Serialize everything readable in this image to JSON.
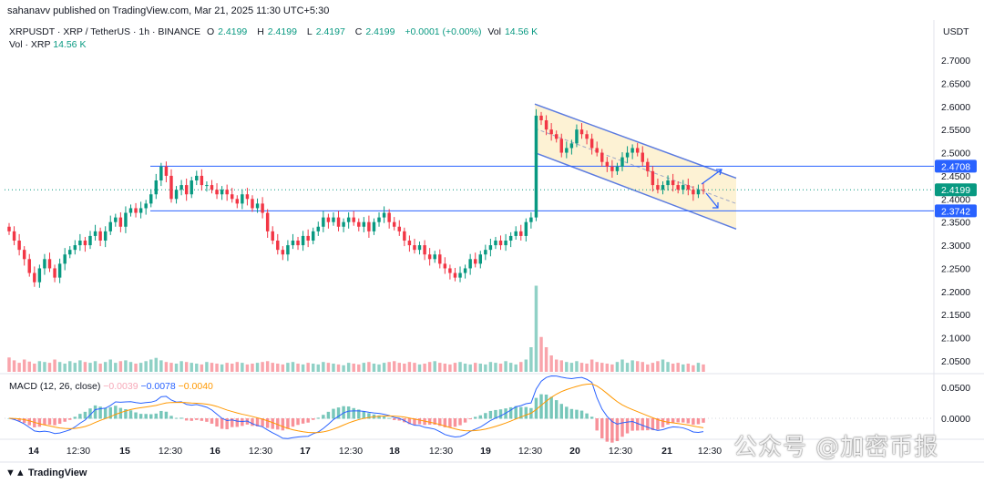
{
  "header": {
    "published": "sahanavv published on TradingView.com, Mar 21, 2025 11:30 UTC+5:30",
    "currency": "USDT"
  },
  "legend": {
    "symbol": "XRPUSDT · XRP / TetherUS · 1h · BINANCE",
    "o_label": "O",
    "o": "2.4199",
    "h_label": "H",
    "h": "2.4199",
    "l_label": "L",
    "l": "2.4197",
    "c_label": "C",
    "c": "2.4199",
    "change": "+0.0001 (+0.00%)",
    "vol_label": "Vol",
    "vol": "14.56 K"
  },
  "vol_legend": {
    "label": "Vol · XRP",
    "value": "14.56 K"
  },
  "macd_legend": {
    "label": "MACD (12, 26, close)",
    "hist": "−0.0039",
    "macd": "−0.0078",
    "signal": "−0.0040"
  },
  "footer": {
    "brand": "TradingView"
  },
  "watermark": "公众号 @加密币报",
  "colors": {
    "up": "#089981",
    "down": "#f23645",
    "level": "#2962ff",
    "channel": "#5b7be0",
    "channel_fill": "#fdf0cc",
    "macd": "#2962ff",
    "signal": "#ff9800"
  },
  "chart_data": {
    "type": "candlestick",
    "price_axis": {
      "ticks": [
        "2.7000",
        "2.6500",
        "2.6000",
        "2.5500",
        "2.5000",
        "2.4500",
        "2.4000",
        "2.3500",
        "2.3000",
        "2.2500",
        "2.2000",
        "2.1500",
        "2.1000",
        "2.0500"
      ],
      "ylim": [
        2.03,
        2.72
      ]
    },
    "time_axis": {
      "ticks": [
        "14",
        "12:30",
        "15",
        "12:30",
        "16",
        "12:30",
        "17",
        "12:30",
        "18",
        "12:30",
        "19",
        "12:30",
        "20",
        "12:30",
        "21",
        "12:30"
      ]
    },
    "levels": [
      {
        "price": 2.4708,
        "label": "2.4708"
      },
      {
        "price": 2.3742,
        "label": "2.3742"
      }
    ],
    "last_price": {
      "price": 2.4199,
      "label": "2.4199"
    },
    "channel": {
      "upper": [
        [
          2.605,
          0.56
        ],
        [
          2.445,
          0.82
        ]
      ],
      "lower": [
        [
          2.5,
          0.56
        ],
        [
          2.335,
          0.82
        ]
      ]
    },
    "closes": [
      2.33,
      2.31,
      2.29,
      2.27,
      2.24,
      2.22,
      2.25,
      2.27,
      2.25,
      2.23,
      2.26,
      2.28,
      2.29,
      2.3,
      2.31,
      2.3,
      2.32,
      2.33,
      2.31,
      2.33,
      2.35,
      2.36,
      2.34,
      2.37,
      2.38,
      2.37,
      2.38,
      2.39,
      2.41,
      2.44,
      2.47,
      2.45,
      2.4,
      2.42,
      2.43,
      2.41,
      2.44,
      2.45,
      2.43,
      2.43,
      2.42,
      2.41,
      2.42,
      2.41,
      2.4,
      2.39,
      2.41,
      2.4,
      2.38,
      2.39,
      2.37,
      2.33,
      2.31,
      2.29,
      2.28,
      2.3,
      2.31,
      2.3,
      2.32,
      2.31,
      2.33,
      2.34,
      2.36,
      2.35,
      2.36,
      2.34,
      2.35,
      2.36,
      2.35,
      2.34,
      2.35,
      2.33,
      2.35,
      2.36,
      2.37,
      2.35,
      2.34,
      2.33,
      2.31,
      2.3,
      2.29,
      2.3,
      2.28,
      2.27,
      2.28,
      2.26,
      2.25,
      2.24,
      2.23,
      2.24,
      2.25,
      2.27,
      2.26,
      2.28,
      2.29,
      2.3,
      2.31,
      2.3,
      2.31,
      2.32,
      2.33,
      2.32,
      2.35,
      2.36,
      2.58,
      2.57,
      2.55,
      2.54,
      2.53,
      2.5,
      2.51,
      2.52,
      2.55,
      2.54,
      2.53,
      2.51,
      2.5,
      2.48,
      2.47,
      2.46,
      2.47,
      2.49,
      2.5,
      2.51,
      2.5,
      2.48,
      2.46,
      2.43,
      2.42,
      2.43,
      2.44,
      2.43,
      2.42,
      2.43,
      2.42,
      2.41,
      2.42,
      2.4199
    ],
    "volumes": [
      35,
      28,
      22,
      30,
      25,
      20,
      26,
      24,
      22,
      30,
      24,
      20,
      26,
      22,
      28,
      24,
      22,
      26,
      20,
      24,
      30,
      22,
      26,
      28,
      24,
      20,
      22,
      26,
      30,
      34,
      28,
      24,
      22,
      20,
      26,
      24,
      22,
      20,
      18,
      24,
      22,
      20,
      18,
      22,
      20,
      24,
      22,
      18,
      20,
      22,
      24,
      26,
      22,
      20,
      18,
      22,
      24,
      20,
      18,
      22,
      20,
      18,
      24,
      22,
      20,
      18,
      16,
      22,
      20,
      18,
      22,
      24,
      20,
      18,
      22,
      24,
      26,
      22,
      20,
      24,
      22,
      18,
      20,
      24,
      26,
      22,
      20,
      18,
      22,
      24,
      20,
      18,
      22,
      20,
      18,
      24,
      22,
      20,
      26,
      22,
      18,
      24,
      30,
      60,
      210,
      85,
      60,
      40,
      30,
      28,
      24,
      22,
      26,
      22,
      20,
      30,
      24,
      22,
      20,
      18,
      24,
      30,
      22,
      28,
      26,
      24,
      18,
      22,
      26,
      30,
      24,
      20,
      22,
      18,
      20,
      16,
      22,
      18
    ]
  }
}
